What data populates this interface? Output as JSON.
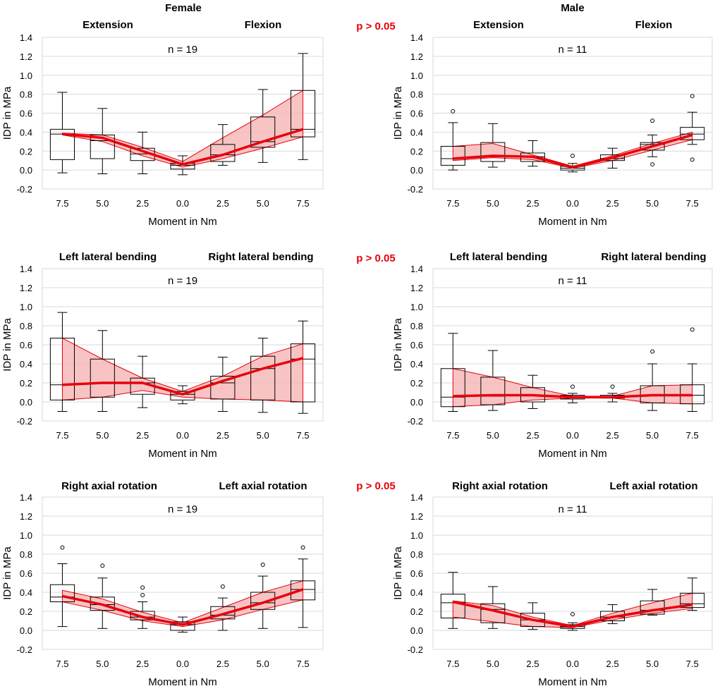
{
  "figure": {
    "col_titles": [
      "Female",
      "Male"
    ],
    "p_labels": [
      "p > 0.05",
      "p > 0.05",
      "p > 0.05"
    ],
    "accent_color": "#e8000b",
    "band_color": "#f6b8b8"
  },
  "chart_data": [
    {
      "type": "box",
      "title": "Female",
      "subtitle_left": "Extension",
      "subtitle_right": "Flexion",
      "n_label": "n = 19",
      "ylabel": "IDP in MPa",
      "xlabel": "Moment in Nm",
      "ylim": [
        -0.2,
        1.4
      ],
      "yticks": [
        "1.4",
        "1.2",
        "1.0",
        "0.8",
        "0.6",
        "0.4",
        "0.2",
        "0.0",
        "-0.2"
      ],
      "categories": [
        "7.5",
        "5.0",
        "2.5",
        "0.0",
        "2.5",
        "5.0",
        "7.5"
      ],
      "boxes": [
        {
          "wl": -0.03,
          "q1": 0.11,
          "med": 0.38,
          "q3": 0.43,
          "wh": 0.82,
          "out": []
        },
        {
          "wl": -0.04,
          "q1": 0.12,
          "med": 0.31,
          "q3": 0.37,
          "wh": 0.65,
          "out": []
        },
        {
          "wl": -0.04,
          "q1": 0.1,
          "med": 0.17,
          "q3": 0.23,
          "wh": 0.4,
          "out": []
        },
        {
          "wl": -0.05,
          "q1": 0.01,
          "med": 0.05,
          "q3": 0.07,
          "wh": 0.15,
          "out": []
        },
        {
          "wl": 0.05,
          "q1": 0.09,
          "med": 0.16,
          "q3": 0.27,
          "wh": 0.48,
          "out": []
        },
        {
          "wl": 0.08,
          "q1": 0.24,
          "med": 0.3,
          "q3": 0.56,
          "wh": 0.85,
          "out": []
        },
        {
          "wl": 0.11,
          "q1": 0.35,
          "med": 0.43,
          "q3": 0.84,
          "wh": 1.23,
          "out": []
        }
      ],
      "trend": [
        0.38,
        0.34,
        0.2,
        0.06,
        0.16,
        0.3,
        0.43
      ],
      "band_low": [
        0.37,
        0.3,
        0.15,
        0.03,
        0.12,
        0.23,
        0.35
      ],
      "band_high": [
        0.39,
        0.37,
        0.24,
        0.09,
        0.34,
        0.58,
        0.84
      ]
    },
    {
      "type": "box",
      "title": "Male",
      "subtitle_left": "Extension",
      "subtitle_right": "Flexion",
      "n_label": "n = 11",
      "ylabel": "IDP in MPa",
      "xlabel": "Moment in Nm",
      "ylim": [
        -0.2,
        1.4
      ],
      "yticks": [
        "1.4",
        "1.2",
        "1.0",
        "0.8",
        "0.6",
        "0.4",
        "0.2",
        "0.0",
        "-0.2"
      ],
      "categories": [
        "7.5",
        "5.0",
        "2.5",
        "0.0",
        "2.5",
        "5.0",
        "7.5"
      ],
      "boxes": [
        {
          "wl": 0.0,
          "q1": 0.05,
          "med": 0.12,
          "q3": 0.25,
          "wh": 0.5,
          "out": [
            0.62
          ]
        },
        {
          "wl": 0.03,
          "q1": 0.09,
          "med": 0.14,
          "q3": 0.29,
          "wh": 0.49,
          "out": []
        },
        {
          "wl": 0.04,
          "q1": 0.09,
          "med": 0.14,
          "q3": 0.18,
          "wh": 0.31,
          "out": []
        },
        {
          "wl": -0.02,
          "q1": 0.0,
          "med": 0.02,
          "q3": 0.04,
          "wh": 0.07,
          "out": [
            0.15
          ]
        },
        {
          "wl": 0.02,
          "q1": 0.1,
          "med": 0.12,
          "q3": 0.16,
          "wh": 0.23,
          "out": []
        },
        {
          "wl": 0.14,
          "q1": 0.21,
          "med": 0.27,
          "q3": 0.29,
          "wh": 0.37,
          "out": [
            0.52,
            0.06
          ]
        },
        {
          "wl": 0.27,
          "q1": 0.32,
          "med": 0.38,
          "q3": 0.45,
          "wh": 0.61,
          "out": [
            0.78,
            0.11
          ]
        }
      ],
      "trend": [
        0.12,
        0.15,
        0.14,
        0.03,
        0.13,
        0.25,
        0.37
      ],
      "band_low": [
        0.1,
        0.13,
        0.11,
        0.02,
        0.1,
        0.21,
        0.32
      ],
      "band_high": [
        0.25,
        0.28,
        0.16,
        0.04,
        0.15,
        0.28,
        0.4
      ]
    },
    {
      "type": "box",
      "subtitle_left": "Left lateral bending",
      "subtitle_right": "Right lateral bending",
      "n_label": "n = 19",
      "ylabel": "IDP in MPa",
      "xlabel": "Moment in Nm",
      "ylim": [
        -0.2,
        1.4
      ],
      "yticks": [
        "1.4",
        "1.2",
        "1.0",
        "0.8",
        "0.6",
        "0.4",
        "0.2",
        "0.0",
        "-0.2"
      ],
      "categories": [
        "7.5",
        "5.0",
        "2.5",
        "0.0",
        "2.5",
        "5.0",
        "7.5"
      ],
      "boxes": [
        {
          "wl": -0.1,
          "q1": 0.02,
          "med": 0.18,
          "q3": 0.67,
          "wh": 0.94,
          "out": []
        },
        {
          "wl": -0.1,
          "q1": 0.05,
          "med": 0.2,
          "q3": 0.45,
          "wh": 0.75,
          "out": []
        },
        {
          "wl": -0.06,
          "q1": 0.08,
          "med": 0.2,
          "q3": 0.25,
          "wh": 0.48,
          "out": []
        },
        {
          "wl": -0.02,
          "q1": 0.02,
          "med": 0.08,
          "q3": 0.11,
          "wh": 0.17,
          "out": []
        },
        {
          "wl": -0.1,
          "q1": 0.03,
          "med": 0.2,
          "q3": 0.27,
          "wh": 0.47,
          "out": []
        },
        {
          "wl": -0.11,
          "q1": 0.02,
          "med": 0.35,
          "q3": 0.48,
          "wh": 0.67,
          "out": []
        },
        {
          "wl": -0.12,
          "q1": 0.0,
          "med": 0.45,
          "q3": 0.61,
          "wh": 0.85,
          "out": []
        }
      ],
      "trend": [
        0.18,
        0.2,
        0.2,
        0.08,
        0.22,
        0.35,
        0.46
      ],
      "band_low": [
        0.02,
        0.05,
        0.12,
        0.05,
        0.03,
        0.02,
        0.0
      ],
      "band_high": [
        0.67,
        0.45,
        0.25,
        0.11,
        0.27,
        0.48,
        0.61
      ]
    },
    {
      "type": "box",
      "subtitle_left": "Left lateral bending",
      "subtitle_right": "Right lateral bending",
      "n_label": "n = 11",
      "ylabel": "IDP in MPa",
      "xlabel": "Moment in Nm",
      "ylim": [
        -0.2,
        1.4
      ],
      "yticks": [
        "1.4",
        "1.2",
        "1.0",
        "0.8",
        "0.6",
        "0.4",
        "0.2",
        "0.0",
        "-0.2"
      ],
      "categories": [
        "7.5",
        "5.0",
        "2.5",
        "0.0",
        "2.5",
        "5.0",
        "7.5"
      ],
      "boxes": [
        {
          "wl": -0.1,
          "q1": -0.05,
          "med": 0.05,
          "q3": 0.35,
          "wh": 0.72,
          "out": []
        },
        {
          "wl": -0.09,
          "q1": -0.03,
          "med": 0.06,
          "q3": 0.26,
          "wh": 0.54,
          "out": []
        },
        {
          "wl": -0.07,
          "q1": 0.0,
          "med": 0.07,
          "q3": 0.15,
          "wh": 0.28,
          "out": []
        },
        {
          "wl": -0.01,
          "q1": 0.03,
          "med": 0.05,
          "q3": 0.07,
          "wh": 0.09,
          "out": [
            0.16
          ]
        },
        {
          "wl": 0.0,
          "q1": 0.04,
          "med": 0.05,
          "q3": 0.07,
          "wh": 0.09,
          "out": [
            0.16
          ]
        },
        {
          "wl": -0.09,
          "q1": -0.01,
          "med": 0.07,
          "q3": 0.17,
          "wh": 0.4,
          "out": [
            0.53
          ]
        },
        {
          "wl": -0.1,
          "q1": -0.02,
          "med": 0.07,
          "q3": 0.18,
          "wh": 0.4,
          "out": [
            0.76
          ]
        }
      ],
      "trend": [
        0.06,
        0.07,
        0.07,
        0.05,
        0.05,
        0.07,
        0.07
      ],
      "band_low": [
        -0.05,
        -0.03,
        0.02,
        0.04,
        0.04,
        -0.01,
        -0.02
      ],
      "band_high": [
        0.35,
        0.26,
        0.15,
        0.06,
        0.06,
        0.17,
        0.18
      ]
    },
    {
      "type": "box",
      "subtitle_left": "Right axial rotation",
      "subtitle_right": "Left axial rotation",
      "n_label": "n = 19",
      "ylabel": "IDP in MPa",
      "xlabel": "Moment in Nm",
      "ylim": [
        -0.2,
        1.4
      ],
      "yticks": [
        "1.4",
        "1.2",
        "1.0",
        "0.8",
        "0.6",
        "0.4",
        "0.2",
        "0.0",
        "-0.2"
      ],
      "categories": [
        "7.5",
        "5.0",
        "2.5",
        "0.0",
        "2.5",
        "5.0",
        "7.5"
      ],
      "boxes": [
        {
          "wl": 0.04,
          "q1": 0.3,
          "med": 0.35,
          "q3": 0.48,
          "wh": 0.7,
          "out": [
            0.87
          ]
        },
        {
          "wl": 0.02,
          "q1": 0.21,
          "med": 0.27,
          "q3": 0.35,
          "wh": 0.55,
          "out": [
            0.68
          ]
        },
        {
          "wl": 0.02,
          "q1": 0.11,
          "med": 0.14,
          "q3": 0.2,
          "wh": 0.3,
          "out": [
            0.45,
            0.37
          ]
        },
        {
          "wl": -0.02,
          "q1": 0.0,
          "med": 0.06,
          "q3": 0.09,
          "wh": 0.14,
          "out": []
        },
        {
          "wl": 0.0,
          "q1": 0.12,
          "med": 0.16,
          "q3": 0.25,
          "wh": 0.34,
          "out": [
            0.46
          ]
        },
        {
          "wl": 0.02,
          "q1": 0.22,
          "med": 0.29,
          "q3": 0.4,
          "wh": 0.57,
          "out": [
            0.69
          ]
        },
        {
          "wl": 0.03,
          "q1": 0.32,
          "med": 0.43,
          "q3": 0.52,
          "wh": 0.75,
          "out": [
            0.87
          ]
        }
      ],
      "trend": [
        0.36,
        0.27,
        0.14,
        0.06,
        0.17,
        0.29,
        0.43
      ],
      "band_low": [
        0.3,
        0.21,
        0.1,
        0.04,
        0.11,
        0.22,
        0.32
      ],
      "band_high": [
        0.42,
        0.33,
        0.19,
        0.08,
        0.24,
        0.4,
        0.52
      ]
    },
    {
      "type": "box",
      "subtitle_left": "Right axial rotation",
      "subtitle_right": "Left axial rotation",
      "n_label": "n = 11",
      "ylabel": "IDP in MPa",
      "xlabel": "Moment in Nm",
      "ylim": [
        -0.2,
        1.4
      ],
      "yticks": [
        "1.4",
        "1.2",
        "1.0",
        "0.8",
        "0.6",
        "0.4",
        "0.2",
        "0.0",
        "-0.2"
      ],
      "categories": [
        "7.5",
        "5.0",
        "2.5",
        "0.0",
        "2.5",
        "5.0",
        "7.5"
      ],
      "boxes": [
        {
          "wl": 0.02,
          "q1": 0.13,
          "med": 0.29,
          "q3": 0.38,
          "wh": 0.61,
          "out": []
        },
        {
          "wl": 0.02,
          "q1": 0.08,
          "med": 0.22,
          "q3": 0.28,
          "wh": 0.46,
          "out": []
        },
        {
          "wl": 0.01,
          "q1": 0.04,
          "med": 0.11,
          "q3": 0.18,
          "wh": 0.29,
          "out": []
        },
        {
          "wl": 0.0,
          "q1": 0.02,
          "med": 0.04,
          "q3": 0.06,
          "wh": 0.08,
          "out": [
            0.17
          ]
        },
        {
          "wl": 0.07,
          "q1": 0.1,
          "med": 0.14,
          "q3": 0.2,
          "wh": 0.27,
          "out": []
        },
        {
          "wl": 0.16,
          "q1": 0.17,
          "med": 0.21,
          "q3": 0.31,
          "wh": 0.43,
          "out": []
        },
        {
          "wl": 0.21,
          "q1": 0.24,
          "med": 0.28,
          "q3": 0.39,
          "wh": 0.55,
          "out": []
        }
      ],
      "trend": [
        0.3,
        0.21,
        0.11,
        0.04,
        0.14,
        0.21,
        0.27
      ],
      "band_low": [
        0.14,
        0.09,
        0.04,
        0.03,
        0.11,
        0.18,
        0.23
      ],
      "band_high": [
        0.31,
        0.26,
        0.14,
        0.05,
        0.18,
        0.29,
        0.39
      ]
    }
  ]
}
